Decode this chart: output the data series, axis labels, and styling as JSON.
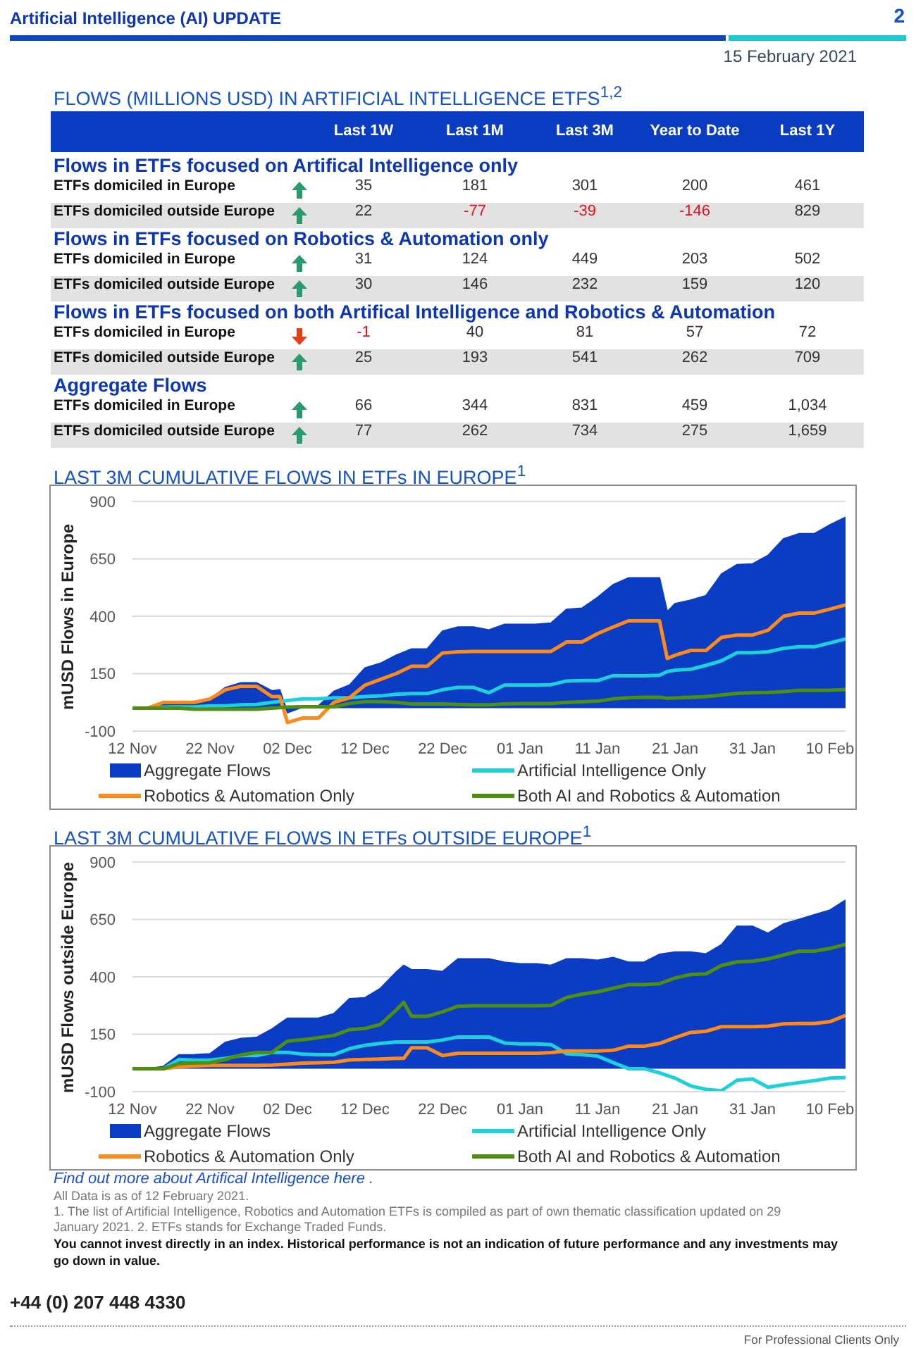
{
  "chart_data": [
    {
      "type": "other",
      "title": "FLOWS (MILLIONS USD) IN ARTIFICIAL INTELLIGENCE ETFS$^{1,2}$",
      "categories": [
        "Last 1W",
        "Last 1M",
        "Last 3M",
        "Year to Date",
        "Last 1Y"
      ],
      "series": [
        {
          "name": "ETFs domiciled in Europe",
          "values": [
            35,
            181,
            301,
            200,
            461
          ],
          "value_labels": [
            "35",
            "181",
            "301",
            "200",
            "461"
          ]
        },
        {
          "name": "ETFs domiciled outside Europe",
          "values": [
            22,
            -77,
            -39,
            -146,
            829
          ],
          "value_labels": [
            "22",
            "-77",
            "-39",
            "-146",
            "829"
          ]
        },
        {
          "name": "ETFs domiciled in Europe",
          "values": [
            31,
            124,
            449,
            203,
            502
          ],
          "value_labels": [
            "31",
            "124",
            "449",
            "203",
            "502"
          ]
        },
        {
          "name": "ETFs domiciled outside Europe",
          "values": [
            30,
            146,
            232,
            159,
            120
          ],
          "value_labels": [
            "30",
            "146",
            "232",
            "159",
            "120"
          ]
        },
        {
          "name": "ETFs domiciled in Europe",
          "values": [
            -1,
            40,
            81,
            57,
            72
          ],
          "value_labels": [
            "-1",
            "40",
            "81",
            "57",
            "72"
          ]
        },
        {
          "name": "ETFs domiciled outside Europe",
          "values": [
            25,
            193,
            541,
            262,
            709
          ],
          "value_labels": [
            "25",
            "193",
            "541",
            "262",
            "709"
          ]
        },
        {
          "name": "ETFs domiciled in Europe",
          "values": [
            66,
            344,
            831,
            459,
            1034
          ],
          "value_labels": [
            "66",
            "344",
            "831",
            "459",
            "1,034"
          ]
        },
        {
          "name": "ETFs domiciled outside Europe",
          "values": [
            77,
            262,
            734,
            275,
            1659
          ],
          "value_labels": [
            "77",
            "262",
            "734",
            "275",
            "1,659"
          ]
        }
      ],
      "annotations": [
        "Artificial Intelligence (AI) UPDATE",
        "2",
        "15 February 2021",
        "Flows in ETFs focused on Artifical Intelligence only",
        "Flows in ETFs focused on Robotics & Automation only",
        "Flows in ETFs focused on both Artifical Intelligence and Robotics & Automation",
        "Aggregate Flows"
      ]
    },
    {
      "type": "line",
      "title": "LAST 3M CUMULATIVE FLOWS IN ETFs IN EUROPE$^{1}$",
      "ylabel": "mUSD Flows in Europe",
      "x": [
        "2020-11-12",
        "2020-11-14",
        "2020-11-16",
        "2020-11-18",
        "2020-11-20",
        "2020-11-22",
        "2020-11-24",
        "2020-11-26",
        "2020-11-28",
        "2020-11-30",
        "2020-12-01",
        "2020-12-02",
        "2020-12-04",
        "2020-12-06",
        "2020-12-08",
        "2020-12-10",
        "2020-12-12",
        "2020-12-14",
        "2020-12-16",
        "2020-12-18",
        "2020-12-20",
        "2020-12-22",
        "2020-12-24",
        "2020-12-26",
        "2020-12-28",
        "2020-12-30",
        "2021-01-01",
        "2021-01-03",
        "2021-01-05",
        "2021-01-07",
        "2021-01-09",
        "2021-01-11",
        "2021-01-13",
        "2021-01-15",
        "2021-01-17",
        "2021-01-19",
        "2021-01-20",
        "2021-01-21",
        "2021-01-23",
        "2021-01-25",
        "2021-01-27",
        "2021-01-29",
        "2021-01-31",
        "2021-02-02",
        "2021-02-04",
        "2021-02-06",
        "2021-02-08",
        "2021-02-10",
        "2021-02-12"
      ],
      "series": [
        {
          "name": "Aggregate Flows",
          "type": "area",
          "color": "#0a3dc4",
          "values": [
            0,
            0,
            20,
            28,
            28,
            40,
            90,
            110,
            110,
            75,
            80,
            -20,
            5,
            10,
            73,
            100,
            175,
            195,
            230,
            257,
            257,
            335,
            353,
            353,
            340,
            365,
            365,
            365,
            370,
            430,
            435,
            482,
            537,
            567,
            567,
            567,
            420,
            455,
            470,
            490,
            584,
            625,
            628,
            665,
            737,
            760,
            760,
            798,
            831
          ]
        },
        {
          "name": "Artificial Intelligence Only",
          "color": "#1ed0da",
          "values": [
            0,
            0,
            4,
            5,
            5,
            10,
            10,
            14,
            16,
            25,
            29,
            33,
            40,
            40,
            45,
            45,
            50,
            53,
            60,
            63,
            63,
            80,
            90,
            90,
            67,
            100,
            100,
            100,
            102,
            118,
            120,
            120,
            141,
            141,
            141,
            143,
            159,
            165,
            169,
            186,
            206,
            241,
            241,
            245,
            260,
            267,
            267,
            284,
            301
          ]
        },
        {
          "name": "Robotics & Automation Only",
          "color": "#ff8a1c",
          "values": [
            0,
            0,
            25,
            25,
            25,
            40,
            80,
            95,
            95,
            50,
            50,
            -63,
            -43,
            -43,
            25,
            45,
            100,
            125,
            150,
            182,
            182,
            240,
            245,
            247,
            247,
            247,
            247,
            247,
            247,
            288,
            288,
            324,
            353,
            380,
            380,
            380,
            216,
            230,
            251,
            251,
            308,
            318,
            318,
            339,
            400,
            414,
            414,
            431,
            449
          ]
        },
        {
          "name": "Both AI and Robotics & Automation",
          "color": "#4e8f10",
          "values": [
            0,
            0,
            0,
            0,
            -5,
            -5,
            -5,
            -5,
            -5,
            0,
            2,
            4,
            6,
            6,
            6,
            20,
            28,
            28,
            25,
            18,
            18,
            18,
            16,
            14,
            14,
            18,
            20,
            20,
            20,
            25,
            27,
            30,
            40,
            45,
            47,
            47,
            43,
            44,
            47,
            50,
            57,
            64,
            67,
            68,
            72,
            77,
            77,
            78,
            81
          ]
        }
      ],
      "xlim": [
        "2020-11-12",
        "2021-02-12"
      ],
      "xticks": [
        {
          "value": "2020-11-12",
          "label": "12 Nov"
        },
        {
          "value": "2020-11-22",
          "label": "22 Nov"
        },
        {
          "value": "2020-12-02",
          "label": "02 Dec"
        },
        {
          "value": "2020-12-12",
          "label": "12 Dec"
        },
        {
          "value": "2020-12-22",
          "label": "22 Dec"
        },
        {
          "value": "2021-01-01",
          "label": "01 Jan"
        },
        {
          "value": "2021-01-11",
          "label": "11 Jan"
        },
        {
          "value": "2021-01-21",
          "label": "21 Jan"
        },
        {
          "value": "2021-01-31",
          "label": "31 Jan"
        },
        {
          "value": "2021-02-10",
          "label": "10 Feb"
        }
      ],
      "ylim": [
        -100,
        900
      ],
      "yticks": [
        -100,
        150,
        400,
        650,
        900
      ],
      "grid": "y",
      "legend": "bottom"
    },
    {
      "type": "line",
      "title": "LAST 3M CUMULATIVE FLOWS IN ETFs OUTSIDE EUROPE$^{1}$",
      "ylabel": "mUSD Flows outside Europe",
      "x": [
        "2020-11-12",
        "2020-11-14",
        "2020-11-16",
        "2020-11-18",
        "2020-11-20",
        "2020-11-22",
        "2020-11-24",
        "2020-11-26",
        "2020-11-28",
        "2020-11-30",
        "2020-12-02",
        "2020-12-04",
        "2020-12-06",
        "2020-12-08",
        "2020-12-10",
        "2020-12-12",
        "2020-12-14",
        "2020-12-16",
        "2020-12-17",
        "2020-12-18",
        "2020-12-20",
        "2020-12-22",
        "2020-12-24",
        "2020-12-26",
        "2020-12-28",
        "2020-12-30",
        "2021-01-01",
        "2021-01-03",
        "2021-01-05",
        "2021-01-07",
        "2021-01-09",
        "2021-01-11",
        "2021-01-13",
        "2021-01-15",
        "2021-01-17",
        "2021-01-19",
        "2021-01-21",
        "2021-01-23",
        "2021-01-25",
        "2021-01-27",
        "2021-01-29",
        "2021-01-31",
        "2021-02-02",
        "2021-02-04",
        "2021-02-06",
        "2021-02-08",
        "2021-02-10",
        "2021-02-12"
      ],
      "series": [
        {
          "name": "Aggregate Flows",
          "type": "area",
          "color": "#0a3dc4",
          "values": [
            0,
            0,
            10,
            60,
            61,
            65,
            115,
            132,
            136,
            173,
            220,
            220,
            220,
            240,
            305,
            309,
            350,
            420,
            450,
            431,
            431,
            423,
            478,
            478,
            478,
            464,
            457,
            457,
            450,
            478,
            478,
            472,
            484,
            464,
            464,
            498,
            508,
            508,
            500,
            540,
            620,
            620,
            590,
            630,
            650,
            671,
            691,
            734
          ]
        },
        {
          "name": "Artificial Intelligence Only",
          "color": "#1ed0da",
          "values": [
            0,
            0,
            0,
            40,
            37,
            37,
            45,
            57,
            57,
            71,
            71,
            63,
            61,
            61,
            87,
            102,
            110,
            116,
            116,
            116,
            116,
            125,
            138,
            138,
            138,
            112,
            108,
            108,
            105,
            65,
            61,
            55,
            27,
            0,
            0,
            -18,
            -41,
            -75,
            -90,
            -96,
            -50,
            -45,
            -81,
            -70,
            -61,
            -52,
            -41,
            -39
          ]
        },
        {
          "name": "Robotics & Automation Only",
          "color": "#ff8a1c",
          "values": [
            0,
            0,
            0,
            8,
            12,
            14,
            14,
            14,
            14,
            16,
            20,
            24,
            26,
            28,
            38,
            40,
            42,
            45,
            45,
            91,
            91,
            57,
            67,
            67,
            67,
            67,
            67,
            67,
            70,
            77,
            77,
            77,
            80,
            98,
            98,
            110,
            135,
            158,
            163,
            183,
            183,
            183,
            185,
            195,
            197,
            197,
            205,
            232
          ]
        },
        {
          "name": "Both AI and Robotics & Automation",
          "color": "#4e8f10",
          "values": [
            0,
            0,
            0,
            22,
            25,
            26,
            40,
            60,
            70,
            71,
            120,
            126,
            135,
            145,
            170,
            175,
            193,
            255,
            289,
            228,
            228,
            248,
            272,
            274,
            274,
            274,
            274,
            274,
            276,
            310,
            325,
            335,
            350,
            366,
            366,
            370,
            395,
            410,
            413,
            450,
            465,
            468,
            478,
            495,
            512,
            512,
            524,
            541
          ]
        }
      ],
      "xlim": [
        "2020-11-12",
        "2021-02-12"
      ],
      "xticks": [
        {
          "value": "2020-11-12",
          "label": "12 Nov"
        },
        {
          "value": "2020-11-22",
          "label": "22 Nov"
        },
        {
          "value": "2020-12-02",
          "label": "02 Dec"
        },
        {
          "value": "2020-12-12",
          "label": "12 Dec"
        },
        {
          "value": "2020-12-22",
          "label": "22 Dec"
        },
        {
          "value": "2021-01-01",
          "label": "01 Jan"
        },
        {
          "value": "2021-01-11",
          "label": "11 Jan"
        },
        {
          "value": "2021-01-21",
          "label": "21 Jan"
        },
        {
          "value": "2021-01-31",
          "label": "31 Jan"
        },
        {
          "value": "2021-02-10",
          "label": "10 Feb"
        }
      ],
      "ylim": [
        -100,
        900
      ],
      "yticks": [
        -100,
        150,
        400,
        650,
        900
      ],
      "grid": "y",
      "legend": "bottom",
      "annotations": [
        "Find out more about Artifical Intelligence here .",
        "All Data is as of 12 February 2021.",
        "1. The list of Artificial Intelligence, Robotics and Automation ETFs is compiled as part of own thematic classification updated on 29 January 2021. 2. ETFs stands for Exchange Traded Funds.",
        "You cannot invest directly in an index. Historical performance is not an indication of future performance and any investments may go down in value.",
        "+44 (0) 207 448 4330",
        "For Professional Clients Only"
      ]
    }
  ]
}
